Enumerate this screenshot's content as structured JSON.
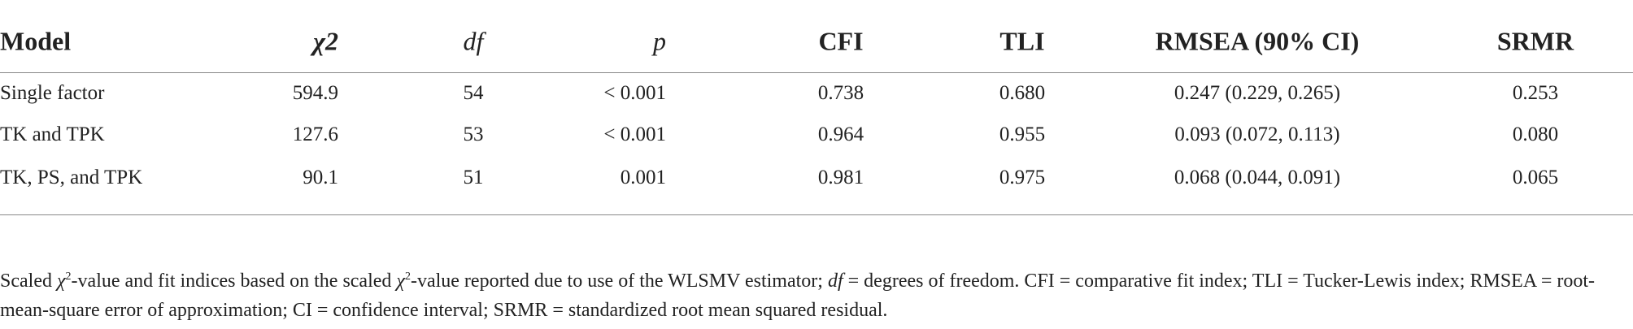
{
  "table": {
    "headers": [
      "Model",
      "χ2",
      "df",
      "p",
      "CFI",
      "TLI",
      "RMSEA (90% CI)",
      "SRMR"
    ],
    "rows": [
      [
        "Single factor",
        "594.9",
        "54",
        "< 0.001",
        "0.738",
        "0.680",
        "0.247 (0.229, 0.265)",
        "0.253"
      ],
      [
        "TK and TPK",
        "127.6",
        "53",
        "< 0.001",
        "0.964",
        "0.955",
        "0.093 (0.072, 0.113)",
        "0.080"
      ],
      [
        "TK, PS, and TPK",
        "90.1",
        "51",
        "0.001",
        "0.981",
        "0.975",
        "0.068 (0.044, 0.091)",
        "0.065"
      ]
    ]
  },
  "footnote": [
    "Scaled ",
    "χ",
    "2",
    "-value and fit indices based on the scaled ",
    "χ",
    "2",
    "-value reported due to use of the WLSMV estimator; ",
    "df",
    " = degrees of freedom. CFI = comparative fit index; TLI = Tucker-Lewis index; RMSEA = root-mean-square error of approximation; CI = confidence interval; SRMR = standardized root mean squared residual."
  ]
}
